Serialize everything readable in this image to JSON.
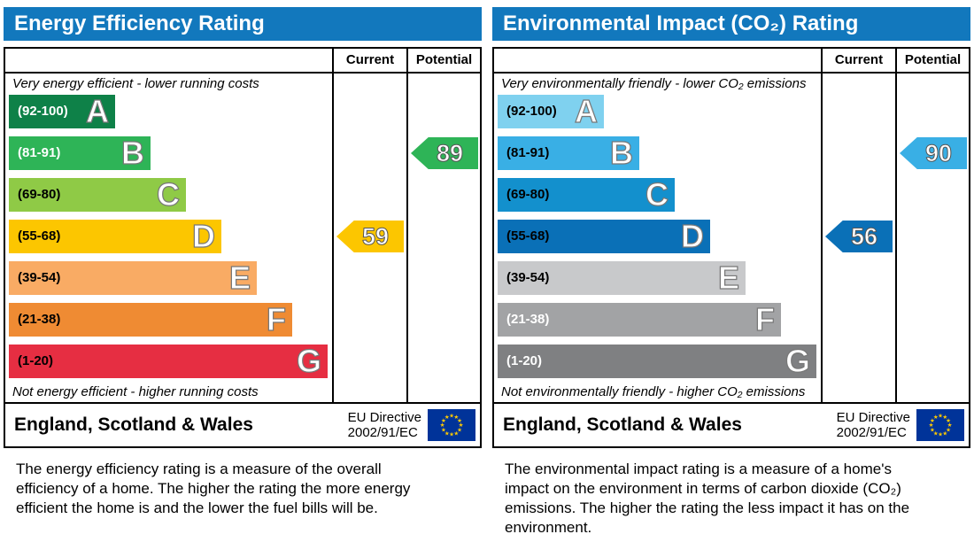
{
  "colors": {
    "header_bar": "#1278bd",
    "table_border": "#000000",
    "eu_flag_blue": "#003399",
    "eu_flag_star": "#ffcc00"
  },
  "panels": [
    {
      "title": "Energy Efficiency Rating",
      "columns": {
        "current": "Current",
        "potential": "Potential"
      },
      "top_note": "Very energy efficient - lower running costs",
      "bottom_note": "Not energy efficient - higher running costs",
      "bands": [
        {
          "letter": "A",
          "range": "(92-100)",
          "color": "#0e8148",
          "text_color": "#ffffff"
        },
        {
          "letter": "B",
          "range": "(81-91)",
          "color": "#2eb457",
          "text_color": "#ffffff"
        },
        {
          "letter": "C",
          "range": "(69-80)",
          "color": "#8fca46",
          "text_color": "#000000"
        },
        {
          "letter": "D",
          "range": "(55-68)",
          "color": "#fcc600",
          "text_color": "#000000"
        },
        {
          "letter": "E",
          "range": "(39-54)",
          "color": "#f9ab64",
          "text_color": "#000000"
        },
        {
          "letter": "F",
          "range": "(21-38)",
          "color": "#ef8b33",
          "text_color": "#000000"
        },
        {
          "letter": "G",
          "range": "(1-20)",
          "color": "#e62e42",
          "text_color": "#000000"
        }
      ],
      "current": {
        "value": "59",
        "band": "D",
        "color": "#fcc600"
      },
      "potential": {
        "value": "89",
        "band": "B",
        "color": "#2eb457"
      },
      "footer": {
        "region": "England, Scotland & Wales",
        "directive_line1": "EU Directive",
        "directive_line2": "2002/91/EC"
      },
      "caption": "The energy efficiency rating is a measure of the overall efficiency of a home. The higher the rating the more energy efficient the home is and the lower the fuel bills will be."
    },
    {
      "title": "Environmental Impact (CO₂) Rating",
      "columns": {
        "current": "Current",
        "potential": "Potential"
      },
      "top_note": "Very environmentally friendly - lower CO₂ emissions",
      "bottom_note": "Not environmentally friendly - higher CO₂ emissions",
      "bands": [
        {
          "letter": "A",
          "range": "(92-100)",
          "color": "#7fd1ef",
          "text_color": "#000000"
        },
        {
          "letter": "B",
          "range": "(81-91)",
          "color": "#39afe5",
          "text_color": "#000000"
        },
        {
          "letter": "C",
          "range": "(69-80)",
          "color": "#1390cd",
          "text_color": "#000000"
        },
        {
          "letter": "D",
          "range": "(55-68)",
          "color": "#0a70b7",
          "text_color": "#000000"
        },
        {
          "letter": "E",
          "range": "(39-54)",
          "color": "#c8c9cb",
          "text_color": "#000000"
        },
        {
          "letter": "F",
          "range": "(21-38)",
          "color": "#a2a3a5",
          "text_color": "#ffffff"
        },
        {
          "letter": "G",
          "range": "(1-20)",
          "color": "#7f8082",
          "text_color": "#ffffff"
        }
      ],
      "current": {
        "value": "56",
        "band": "D",
        "color": "#0a70b7"
      },
      "potential": {
        "value": "90",
        "band": "B",
        "color": "#39afe5"
      },
      "footer": {
        "region": "England, Scotland & Wales",
        "directive_line1": "EU Directive",
        "directive_line2": "2002/91/EC"
      },
      "caption": "The environmental impact rating is a measure of a home's impact on the environment in terms of carbon dioxide (CO₂) emissions. The higher the rating the less impact it has on the environment."
    }
  ],
  "chart_data": [
    {
      "type": "bar",
      "title": "Energy Efficiency Rating",
      "categories": [
        "A (92-100)",
        "B (81-91)",
        "C (69-80)",
        "D (55-68)",
        "E (39-54)",
        "F (21-38)",
        "G (1-20)"
      ],
      "band_colors": [
        "#0e8148",
        "#2eb457",
        "#8fca46",
        "#fcc600",
        "#f9ab64",
        "#ef8b33",
        "#e62e42"
      ],
      "orientation": "horizontal",
      "series": [
        {
          "name": "Current",
          "value": 59,
          "band": "D"
        },
        {
          "name": "Potential",
          "value": 89,
          "band": "B"
        }
      ],
      "xlabel": "",
      "ylabel": "",
      "value_range": [
        1,
        100
      ],
      "annotations": [
        "Very energy efficient - lower running costs",
        "Not energy efficient - higher running costs",
        "England, Scotland & Wales",
        "EU Directive 2002/91/EC"
      ]
    },
    {
      "type": "bar",
      "title": "Environmental Impact (CO₂) Rating",
      "categories": [
        "A (92-100)",
        "B (81-91)",
        "C (69-80)",
        "D (55-68)",
        "E (39-54)",
        "F (21-38)",
        "G (1-20)"
      ],
      "band_colors": [
        "#7fd1ef",
        "#39afe5",
        "#1390cd",
        "#0a70b7",
        "#c8c9cb",
        "#a2a3a5",
        "#7f8082"
      ],
      "orientation": "horizontal",
      "series": [
        {
          "name": "Current",
          "value": 56,
          "band": "D"
        },
        {
          "name": "Potential",
          "value": 90,
          "band": "B"
        }
      ],
      "xlabel": "",
      "ylabel": "",
      "value_range": [
        1,
        100
      ],
      "annotations": [
        "Very environmentally friendly - lower CO₂ emissions",
        "Not environmentally friendly - higher CO₂ emissions",
        "England, Scotland & Wales",
        "EU Directive 2002/91/EC"
      ]
    }
  ]
}
